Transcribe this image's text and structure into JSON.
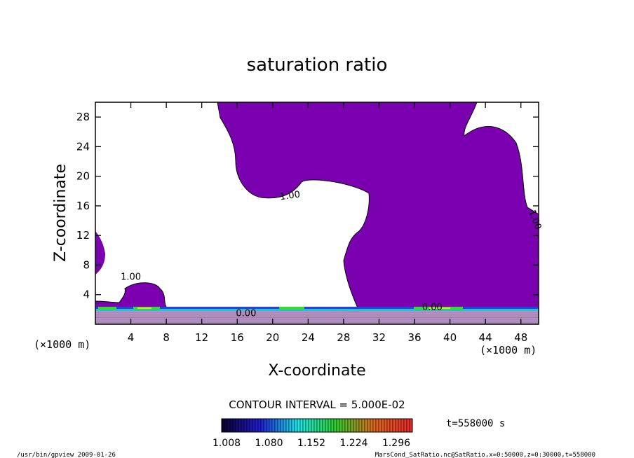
{
  "chart_data": {
    "type": "contour",
    "title": "saturation ratio",
    "xlabel": "X-coordinate",
    "ylabel": "Z-coordinate",
    "x_unit": "(×1000 m)",
    "y_unit": "(×1000 m)",
    "xlim": [
      0,
      50
    ],
    "ylim": [
      0,
      30
    ],
    "x_ticks": [
      4,
      8,
      12,
      16,
      20,
      24,
      28,
      32,
      36,
      40,
      44,
      48
    ],
    "y_ticks": [
      4,
      8,
      12,
      16,
      20,
      24,
      28
    ],
    "contour_interval": "CONTOUR INTERVAL = 5.000E-02",
    "contour_labels": [
      {
        "text": "1.00",
        "x": 22,
        "z": 17
      },
      {
        "text": "1.00",
        "x": 4,
        "z": 6
      },
      {
        "text": "1.00",
        "x": 49.3,
        "z": 14
      },
      {
        "text": "0.00",
        "x": 17,
        "z": 1.1
      },
      {
        "text": "0.00",
        "x": 38,
        "z": 1.9
      }
    ],
    "colorbar": {
      "ticks": [
        "1.008",
        "1.080",
        "1.152",
        "1.224",
        "1.296"
      ],
      "colors": [
        "#0c0033",
        "#1f1fd6",
        "#1ee8e8",
        "#2ed12e",
        "#e06a1c",
        "#e82a2a"
      ]
    },
    "time_label": "t=558000 s",
    "fill_color": "#7b00b0",
    "footer_left": "/usr/bin/gpview  2009-01-26",
    "footer_right": "MarsCond_SatRatio.nc@SatRatio,x=0:50000,z=0:30000,t=558000"
  }
}
